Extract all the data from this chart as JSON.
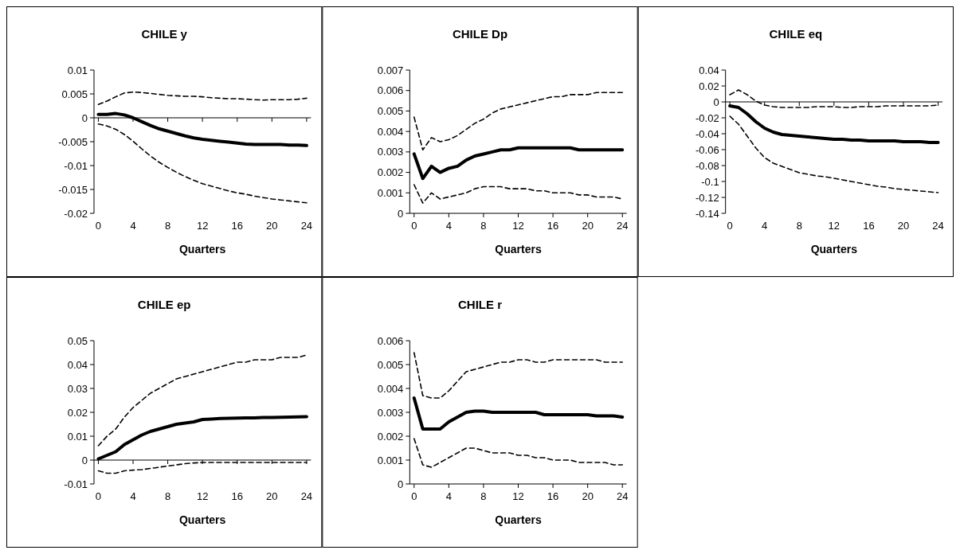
{
  "chart_data": [
    {
      "type": "line",
      "title": "CHILE y",
      "xlabel": "Quarters",
      "x": [
        0,
        1,
        2,
        3,
        4,
        5,
        6,
        7,
        8,
        9,
        10,
        11,
        12,
        13,
        14,
        15,
        16,
        17,
        18,
        19,
        20,
        21,
        22,
        23,
        24
      ],
      "xlim": [
        -0.5,
        24.5
      ],
      "xticks": [
        0,
        4,
        8,
        12,
        16,
        20,
        24
      ],
      "ylim": [
        -0.02,
        0.01
      ],
      "yticks": [
        -0.02,
        -0.015,
        -0.01,
        -0.005,
        0,
        0.005,
        0.01
      ],
      "series": [
        {
          "color": "#000000",
          "line_style": "dashed",
          "values": [
            0.0028,
            0.0035,
            0.0044,
            0.0052,
            0.0054,
            0.0053,
            0.0051,
            0.0049,
            0.0047,
            0.0046,
            0.0045,
            0.0045,
            0.0044,
            0.0042,
            0.0041,
            0.004,
            0.004,
            0.0039,
            0.0038,
            0.0037,
            0.0038,
            0.0038,
            0.0038,
            0.0039,
            0.0041
          ]
        },
        {
          "color": "#000000",
          "line_style": "solid",
          "values": [
            0.0007,
            0.0007,
            0.0009,
            0.0006,
            0,
            -0.0008,
            -0.0016,
            -0.0023,
            -0.0028,
            -0.0033,
            -0.0038,
            -0.0042,
            -0.0045,
            -0.0047,
            -0.0049,
            -0.0051,
            -0.0053,
            -0.0055,
            -0.0056,
            -0.0056,
            -0.0056,
            -0.0056,
            -0.0057,
            -0.0057,
            -0.0058
          ]
        },
        {
          "color": "#000000",
          "line_style": "dashed",
          "values": [
            -0.0013,
            -0.0017,
            -0.0024,
            -0.0035,
            -0.0049,
            -0.0065,
            -0.008,
            -0.0093,
            -0.0104,
            -0.0114,
            -0.0123,
            -0.0131,
            -0.0138,
            -0.0143,
            -0.0148,
            -0.0153,
            -0.0157,
            -0.016,
            -0.0164,
            -0.0167,
            -0.017,
            -0.0172,
            -0.0174,
            -0.0176,
            -0.0178
          ]
        }
      ]
    },
    {
      "type": "line",
      "title": "CHILE Dp",
      "xlabel": "Quarters",
      "x": [
        0,
        1,
        2,
        3,
        4,
        5,
        6,
        7,
        8,
        9,
        10,
        11,
        12,
        13,
        14,
        15,
        16,
        17,
        18,
        19,
        20,
        21,
        22,
        23,
        24
      ],
      "xlim": [
        -0.5,
        24.5
      ],
      "xticks": [
        0,
        4,
        8,
        12,
        16,
        20,
        24
      ],
      "ylim": [
        0,
        0.007
      ],
      "yticks": [
        0,
        0.001,
        0.002,
        0.003,
        0.004,
        0.005,
        0.006,
        0.007
      ],
      "series": [
        {
          "color": "#000000",
          "line_style": "dashed",
          "values": [
            0.0047,
            0.0031,
            0.0037,
            0.0035,
            0.0036,
            0.0038,
            0.0041,
            0.0044,
            0.0046,
            0.0049,
            0.0051,
            0.0052,
            0.0053,
            0.0054,
            0.0055,
            0.0056,
            0.0057,
            0.0057,
            0.0058,
            0.0058,
            0.0058,
            0.0059,
            0.0059,
            0.0059,
            0.0059
          ]
        },
        {
          "color": "#000000",
          "line_style": "solid",
          "values": [
            0.0029,
            0.0017,
            0.0023,
            0.002,
            0.0022,
            0.0023,
            0.0026,
            0.0028,
            0.0029,
            0.003,
            0.0031,
            0.0031,
            0.0032,
            0.0032,
            0.0032,
            0.0032,
            0.0032,
            0.0032,
            0.0032,
            0.0031,
            0.0031,
            0.0031,
            0.0031,
            0.0031,
            0.0031
          ]
        },
        {
          "color": "#000000",
          "line_style": "dashed",
          "values": [
            0.0014,
            0.0005,
            0.001,
            0.0007,
            0.0008,
            0.0009,
            0.001,
            0.0012,
            0.0013,
            0.0013,
            0.0013,
            0.0012,
            0.0012,
            0.0012,
            0.0011,
            0.0011,
            0.001,
            0.001,
            0.001,
            0.0009,
            0.0009,
            0.0008,
            0.0008,
            0.0008,
            0.0007
          ]
        }
      ]
    },
    {
      "type": "line",
      "title": "CHILE eq",
      "xlabel": "Quarters",
      "x": [
        0,
        1,
        2,
        3,
        4,
        5,
        6,
        7,
        8,
        9,
        10,
        11,
        12,
        13,
        14,
        15,
        16,
        17,
        18,
        19,
        20,
        21,
        22,
        23,
        24
      ],
      "xlim": [
        -0.5,
        24.5
      ],
      "xticks": [
        0,
        4,
        8,
        12,
        16,
        20,
        24
      ],
      "ylim": [
        -0.14,
        0.04
      ],
      "yticks": [
        -0.14,
        -0.12,
        -0.1,
        -0.08,
        -0.06,
        -0.04,
        -0.02,
        0,
        0.02,
        0.04
      ],
      "series": [
        {
          "color": "#000000",
          "line_style": "dashed",
          "values": [
            0.009,
            0.015,
            0.009,
            0.001,
            -0.004,
            -0.006,
            -0.007,
            -0.007,
            -0.007,
            -0.007,
            -0.006,
            -0.006,
            -0.006,
            -0.007,
            -0.007,
            -0.006,
            -0.006,
            -0.006,
            -0.005,
            -0.005,
            -0.005,
            -0.005,
            -0.005,
            -0.005,
            -0.004
          ]
        },
        {
          "color": "#000000",
          "line_style": "solid",
          "values": [
            -0.005,
            -0.007,
            -0.015,
            -0.025,
            -0.033,
            -0.038,
            -0.041,
            -0.042,
            -0.043,
            -0.044,
            -0.045,
            -0.046,
            -0.047,
            -0.047,
            -0.048,
            -0.048,
            -0.049,
            -0.049,
            -0.049,
            -0.049,
            -0.05,
            -0.05,
            -0.05,
            -0.051,
            -0.051
          ]
        },
        {
          "color": "#000000",
          "line_style": "dashed",
          "values": [
            -0.018,
            -0.028,
            -0.043,
            -0.058,
            -0.07,
            -0.077,
            -0.081,
            -0.085,
            -0.089,
            -0.091,
            -0.093,
            -0.094,
            -0.096,
            -0.098,
            -0.1,
            -0.102,
            -0.104,
            -0.106,
            -0.107,
            -0.109,
            -0.11,
            -0.111,
            -0.112,
            -0.113,
            -0.114
          ]
        }
      ]
    },
    {
      "type": "line",
      "title": "CHILE ep",
      "xlabel": "Quarters",
      "x": [
        0,
        1,
        2,
        3,
        4,
        5,
        6,
        7,
        8,
        9,
        10,
        11,
        12,
        13,
        14,
        15,
        16,
        17,
        18,
        19,
        20,
        21,
        22,
        23,
        24
      ],
      "xlim": [
        -0.5,
        24.5
      ],
      "xticks": [
        0,
        4,
        8,
        12,
        16,
        20,
        24
      ],
      "ylim": [
        -0.01,
        0.05
      ],
      "yticks": [
        -0.01,
        0,
        0.01,
        0.02,
        0.03,
        0.04,
        0.05
      ],
      "series": [
        {
          "color": "#000000",
          "line_style": "dashed",
          "values": [
            0.006,
            0.01,
            0.013,
            0.018,
            0.022,
            0.025,
            0.028,
            0.03,
            0.032,
            0.034,
            0.035,
            0.036,
            0.037,
            0.038,
            0.039,
            0.04,
            0.041,
            0.041,
            0.042,
            0.042,
            0.042,
            0.043,
            0.043,
            0.043,
            0.044
          ]
        },
        {
          "color": "#000000",
          "line_style": "solid",
          "values": [
            0.0005,
            0.002,
            0.0035,
            0.0065,
            0.0085,
            0.0105,
            0.012,
            0.013,
            0.014,
            0.015,
            0.0155,
            0.016,
            0.017,
            0.0172,
            0.0174,
            0.0175,
            0.0176,
            0.0177,
            0.0177,
            0.0178,
            0.0178,
            0.0179,
            0.018,
            0.0181,
            0.0182
          ]
        },
        {
          "color": "#000000",
          "line_style": "dashed",
          "values": [
            -0.0045,
            -0.0055,
            -0.0055,
            -0.0045,
            -0.0042,
            -0.004,
            -0.0035,
            -0.003,
            -0.0025,
            -0.002,
            -0.0015,
            -0.0012,
            -0.001,
            -0.001,
            -0.001,
            -0.001,
            -0.001,
            -0.001,
            -0.001,
            -0.001,
            -0.001,
            -0.001,
            -0.001,
            -0.001,
            -0.001
          ]
        }
      ]
    },
    {
      "type": "line",
      "title": "CHILE r",
      "xlabel": "Quarters",
      "x": [
        0,
        1,
        2,
        3,
        4,
        5,
        6,
        7,
        8,
        9,
        10,
        11,
        12,
        13,
        14,
        15,
        16,
        17,
        18,
        19,
        20,
        21,
        22,
        23,
        24
      ],
      "xlim": [
        -0.5,
        24.5
      ],
      "xticks": [
        0,
        4,
        8,
        12,
        16,
        20,
        24
      ],
      "ylim": [
        0,
        0.006
      ],
      "yticks": [
        0,
        0.001,
        0.002,
        0.003,
        0.004,
        0.005,
        0.006
      ],
      "series": [
        {
          "color": "#000000",
          "line_style": "dashed",
          "values": [
            0.0055,
            0.0037,
            0.0036,
            0.0036,
            0.0039,
            0.0043,
            0.0047,
            0.0048,
            0.0049,
            0.005,
            0.0051,
            0.0051,
            0.0052,
            0.0052,
            0.0051,
            0.0051,
            0.0052,
            0.0052,
            0.0052,
            0.0052,
            0.0052,
            0.0052,
            0.0051,
            0.0051,
            0.0051
          ]
        },
        {
          "color": "#000000",
          "line_style": "solid",
          "values": [
            0.0036,
            0.0023,
            0.0023,
            0.0023,
            0.0026,
            0.0028,
            0.003,
            0.00305,
            0.00305,
            0.003,
            0.003,
            0.003,
            0.003,
            0.003,
            0.003,
            0.0029,
            0.0029,
            0.0029,
            0.0029,
            0.0029,
            0.0029,
            0.00285,
            0.00285,
            0.00285,
            0.0028
          ]
        },
        {
          "color": "#000000",
          "line_style": "dashed",
          "values": [
            0.0019,
            0.0008,
            0.0007,
            0.0009,
            0.0011,
            0.0013,
            0.0015,
            0.0015,
            0.0014,
            0.0013,
            0.0013,
            0.0013,
            0.0012,
            0.0012,
            0.0011,
            0.0011,
            0.001,
            0.001,
            0.001,
            0.0009,
            0.0009,
            0.0009,
            0.0009,
            0.0008,
            0.0008
          ]
        }
      ]
    }
  ]
}
